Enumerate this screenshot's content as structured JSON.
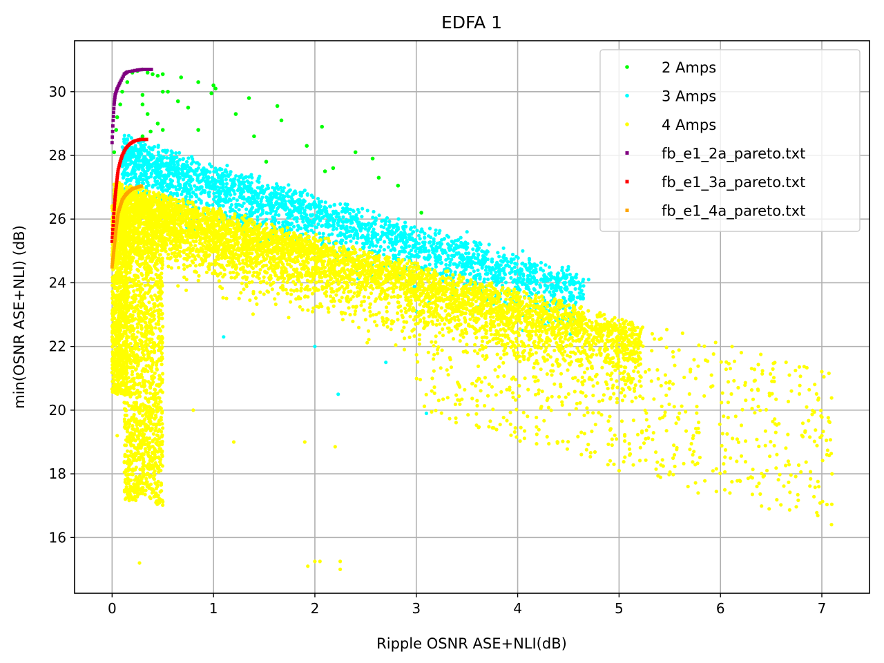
{
  "chart_data": {
    "type": "scatter",
    "title": "EDFA 1",
    "xlabel": "Ripple OSNR ASE+NLI(dB)",
    "ylabel": "min(OSNR ASE+NLI) (dB)",
    "xlim": [
      -0.37,
      7.47
    ],
    "ylim": [
      14.25,
      31.6
    ],
    "xticks": [
      0,
      1,
      2,
      3,
      4,
      5,
      6,
      7
    ],
    "yticks": [
      16,
      18,
      20,
      22,
      24,
      26,
      28,
      30
    ],
    "grid": true,
    "legend_position": "top-right",
    "series": [
      {
        "name": "2 Amps",
        "color": "#00ff00",
        "description": "sparse cloud, max min-OSNR ~30.7 at ripple ~0.3, decreasing to ~26 at ripple ~3",
        "points": [
          [
            0.02,
            28.1
          ],
          [
            0.04,
            28.8
          ],
          [
            0.05,
            29.2
          ],
          [
            0.08,
            29.6
          ],
          [
            0.1,
            30.0
          ],
          [
            0.15,
            30.3
          ],
          [
            0.2,
            30.6
          ],
          [
            0.25,
            30.65
          ],
          [
            0.3,
            30.7
          ],
          [
            0.35,
            30.6
          ],
          [
            0.4,
            30.55
          ],
          [
            0.45,
            30.5
          ],
          [
            0.5,
            30.55
          ],
          [
            0.3,
            29.9
          ],
          [
            0.3,
            29.6
          ],
          [
            0.35,
            29.3
          ],
          [
            0.45,
            29.0
          ],
          [
            0.5,
            28.8
          ],
          [
            0.3,
            28.6
          ],
          [
            0.38,
            28.75
          ],
          [
            0.5,
            30.0
          ],
          [
            0.68,
            30.45
          ],
          [
            0.85,
            30.3
          ],
          [
            0.55,
            30.0
          ],
          [
            0.65,
            29.7
          ],
          [
            1.0,
            30.2
          ],
          [
            1.02,
            30.1
          ],
          [
            0.98,
            29.95
          ],
          [
            0.75,
            29.5
          ],
          [
            1.22,
            29.3
          ],
          [
            1.35,
            29.8
          ],
          [
            0.85,
            28.8
          ],
          [
            1.4,
            28.6
          ],
          [
            1.63,
            29.55
          ],
          [
            1.67,
            29.1
          ],
          [
            1.52,
            27.8
          ],
          [
            1.92,
            28.3
          ],
          [
            2.07,
            28.9
          ],
          [
            2.1,
            27.5
          ],
          [
            2.18,
            27.6
          ],
          [
            2.4,
            28.1
          ],
          [
            2.57,
            27.9
          ],
          [
            2.63,
            27.3
          ],
          [
            2.82,
            27.05
          ],
          [
            3.05,
            26.2
          ]
        ]
      },
      {
        "name": "3 Amps",
        "color": "#00ffff",
        "description": "dense band from (0.1,28.5) sloping down to (4.7,24); lower edge near ripple 0 ~25",
        "points": [
          [
            4.5,
            24.5
          ],
          [
            4.4,
            24.3
          ],
          [
            4.65,
            23.9
          ],
          [
            4.7,
            24.1
          ],
          [
            4.62,
            23.5
          ],
          [
            4.05,
            25.0
          ],
          [
            3.5,
            25.6
          ],
          [
            3.2,
            25.0
          ],
          [
            3.1,
            19.9
          ],
          [
            2.0,
            22.0
          ],
          [
            1.1,
            22.3
          ],
          [
            2.23,
            20.5
          ],
          [
            2.7,
            21.5
          ],
          [
            3.0,
            23.1
          ],
          [
            4.1,
            24.4
          ]
        ]
      },
      {
        "name": "4 Amps",
        "color": "#ffff00",
        "description": "very dense band from (0.2,27) sloping to (5,22.5); narrow column at ripple 0.2-0.5 reaching down to ~15.2; scattered points to (7.1,18)",
        "points": [
          [
            0.27,
            15.2
          ],
          [
            1.93,
            15.1
          ],
          [
            2.0,
            15.25
          ],
          [
            2.05,
            15.25
          ],
          [
            2.25,
            15.0
          ],
          [
            2.25,
            15.25
          ],
          [
            2.2,
            18.85
          ],
          [
            7.1,
            18.0
          ],
          [
            7.0,
            19.2
          ],
          [
            7.05,
            18.6
          ],
          [
            6.48,
            16.9
          ],
          [
            5.78,
            17.4
          ],
          [
            5.68,
            17.6
          ],
          [
            6.38,
            17.7
          ],
          [
            6.3,
            17.9
          ],
          [
            6.53,
            20.9
          ],
          [
            6.85,
            20.1
          ],
          [
            6.7,
            20.6
          ],
          [
            5.0,
            18.1
          ],
          [
            4.95,
            18.3
          ],
          [
            0.05,
            19.2
          ],
          [
            0.8,
            20.0
          ],
          [
            1.2,
            19.0
          ],
          [
            1.9,
            19.0
          ]
        ]
      },
      {
        "name": "fb_e1_2a_pareto.txt",
        "color": "#800080",
        "description": "pareto front of 2 Amps",
        "points": [
          [
            0.0,
            28.4
          ],
          [
            0.01,
            29.1
          ],
          [
            0.02,
            29.6
          ],
          [
            0.03,
            29.9
          ],
          [
            0.05,
            30.1
          ],
          [
            0.08,
            30.3
          ],
          [
            0.12,
            30.55
          ],
          [
            0.15,
            30.62
          ],
          [
            0.25,
            30.68
          ],
          [
            0.3,
            30.7
          ],
          [
            0.35,
            30.7
          ],
          [
            0.4,
            30.7
          ]
        ]
      },
      {
        "name": "fb_e1_3a_pareto.txt",
        "color": "#ff0000",
        "description": "pareto front of 3 Amps",
        "points": [
          [
            0.0,
            25.3
          ],
          [
            0.01,
            25.8
          ],
          [
            0.02,
            26.3
          ],
          [
            0.03,
            26.7
          ],
          [
            0.04,
            27.0
          ],
          [
            0.05,
            27.3
          ],
          [
            0.06,
            27.55
          ],
          [
            0.08,
            27.8
          ],
          [
            0.1,
            28.0
          ],
          [
            0.13,
            28.2
          ],
          [
            0.17,
            28.35
          ],
          [
            0.22,
            28.45
          ],
          [
            0.28,
            28.5
          ],
          [
            0.36,
            28.5
          ]
        ]
      },
      {
        "name": "fb_e1_4a_pareto.txt",
        "color": "#ffa500",
        "description": "pareto front of 4 Amps",
        "points": [
          [
            0.0,
            24.5
          ],
          [
            0.01,
            24.8
          ],
          [
            0.02,
            25.1
          ],
          [
            0.03,
            25.4
          ],
          [
            0.04,
            25.7
          ],
          [
            0.05,
            25.95
          ],
          [
            0.06,
            26.2
          ],
          [
            0.08,
            26.4
          ],
          [
            0.1,
            26.6
          ],
          [
            0.13,
            26.75
          ],
          [
            0.16,
            26.85
          ],
          [
            0.2,
            26.95
          ],
          [
            0.25,
            27.0
          ],
          [
            0.3,
            27.05
          ]
        ]
      }
    ]
  }
}
